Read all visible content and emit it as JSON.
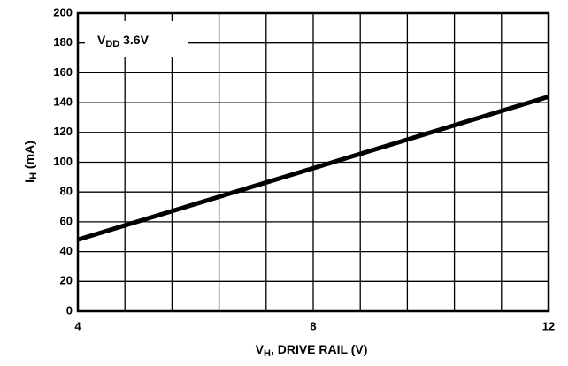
{
  "chart_data": {
    "type": "line",
    "annotation": {
      "main": "V",
      "sub": "DD",
      "rest": " 3.6V"
    },
    "ylabel": {
      "main": "I",
      "sub": "H",
      "rest": " (mA)"
    },
    "xlabel": {
      "main": "V",
      "sub": "H",
      "rest": ", DRIVE RAIL (V)"
    },
    "x": [
      4,
      12
    ],
    "values": [
      48,
      144
    ],
    "color": "#000000",
    "xlim": [
      4,
      12
    ],
    "xticks": [
      4,
      8,
      12
    ],
    "xminor": [
      4.8,
      5.6,
      6.4,
      7.2,
      8.8,
      9.6,
      10.4,
      11.2
    ],
    "ylim": [
      0,
      200
    ],
    "yticks": [
      0,
      20,
      40,
      60,
      80,
      100,
      120,
      140,
      160,
      180,
      200
    ],
    "grid": true
  }
}
